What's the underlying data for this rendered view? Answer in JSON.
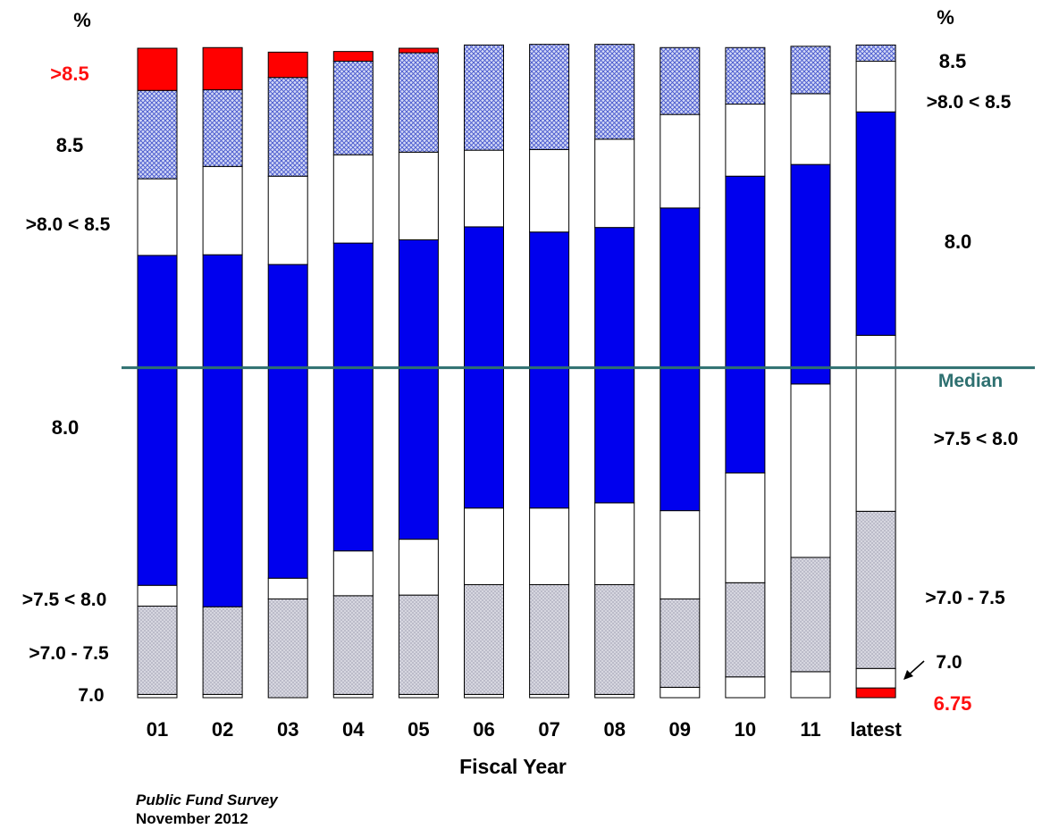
{
  "chart_data": {
    "type": "bar",
    "stacked": true,
    "percent_scale": true,
    "xlabel": "Fiscal Year",
    "ylabel_left": "%",
    "ylabel_right": "%",
    "ylim": [
      0,
      100
    ],
    "categories": [
      "01",
      "02",
      "03",
      "04",
      "05",
      "06",
      "07",
      "08",
      "09",
      "10",
      "11",
      "latest"
    ],
    "segment_order_bottom_to_top": [
      "6.75",
      "7.0",
      ">7.0 - 7.5",
      ">7.5 < 8.0",
      "8.0",
      ">8.0 < 8.5",
      "8.5",
      ">8.5"
    ],
    "series": [
      {
        "name": "6.75",
        "style": "red",
        "values": [
          0,
          0,
          0,
          0,
          0,
          0,
          0,
          0,
          0,
          0,
          0,
          1.5
        ]
      },
      {
        "name": "7.0",
        "style": "white",
        "values": [
          0.5,
          0.5,
          0,
          0.5,
          0.5,
          0.5,
          0.5,
          0.5,
          1.6,
          3.2,
          4.0,
          3.0
        ]
      },
      {
        "name": ">7.0 - 7.5",
        "style": "gray-hatch",
        "values": [
          13.6,
          13.5,
          15.2,
          15.2,
          15.3,
          16.9,
          16.9,
          16.9,
          13.6,
          14.5,
          17.6,
          24.2
        ]
      },
      {
        "name": ">7.5 < 8.0",
        "style": "white",
        "values": [
          3.2,
          0,
          3.2,
          6.9,
          8.6,
          11.8,
          11.8,
          12.6,
          13.6,
          16.9,
          26.7,
          27.1
        ]
      },
      {
        "name": "8.0",
        "style": "blue",
        "values": [
          50.8,
          54.2,
          48.3,
          47.4,
          46.1,
          43.3,
          42.5,
          42.4,
          46.6,
          45.7,
          33.8,
          34.4
        ]
      },
      {
        "name": ">8.0 < 8.5",
        "style": "white",
        "values": [
          11.8,
          13.6,
          13.6,
          13.6,
          13.5,
          11.8,
          12.7,
          13.6,
          14.4,
          11.1,
          10.9,
          7.8
        ]
      },
      {
        "name": "8.5",
        "style": "blue-hatch",
        "values": [
          13.6,
          11.8,
          15.2,
          14.4,
          15.3,
          16.2,
          16.2,
          14.6,
          10.3,
          8.7,
          7.3,
          2.5
        ]
      },
      {
        "name": ">8.5",
        "style": "red",
        "values": [
          6.5,
          6.5,
          3.9,
          1.5,
          0.7,
          0,
          0,
          0,
          0,
          0,
          0,
          0
        ]
      }
    ],
    "median_line": {
      "label": "Median",
      "value": 50.8
    },
    "left_labels": [
      {
        "text": ">8.5",
        "color": "red"
      },
      {
        "text": "8.5"
      },
      {
        "text": ">8.0 < 8.5"
      },
      {
        "text": "8.0"
      },
      {
        "text": ">7.5 < 8.0"
      },
      {
        "text": ">7.0 - 7.5"
      },
      {
        "text": "7.0"
      }
    ],
    "right_labels": [
      {
        "text": "8.5"
      },
      {
        "text": ">8.0 < 8.5"
      },
      {
        "text": "8.0"
      },
      {
        "text": ">7.5 < 8.0"
      },
      {
        "text": ">7.0 - 7.5"
      },
      {
        "text": "7.0"
      },
      {
        "text": "6.75",
        "color": "red"
      }
    ],
    "grid": false,
    "legend": "none"
  },
  "colors": {
    "red": "#ff0000",
    "blue": "#0000ee",
    "white": "#ffffff",
    "blue_hatch": "#5566d8",
    "gray_hatch": "#b8b8c6",
    "median": "#2e7070",
    "label_red": "#ff1010"
  },
  "source": {
    "name": "Public Fund Survey",
    "date": "November 2012"
  }
}
